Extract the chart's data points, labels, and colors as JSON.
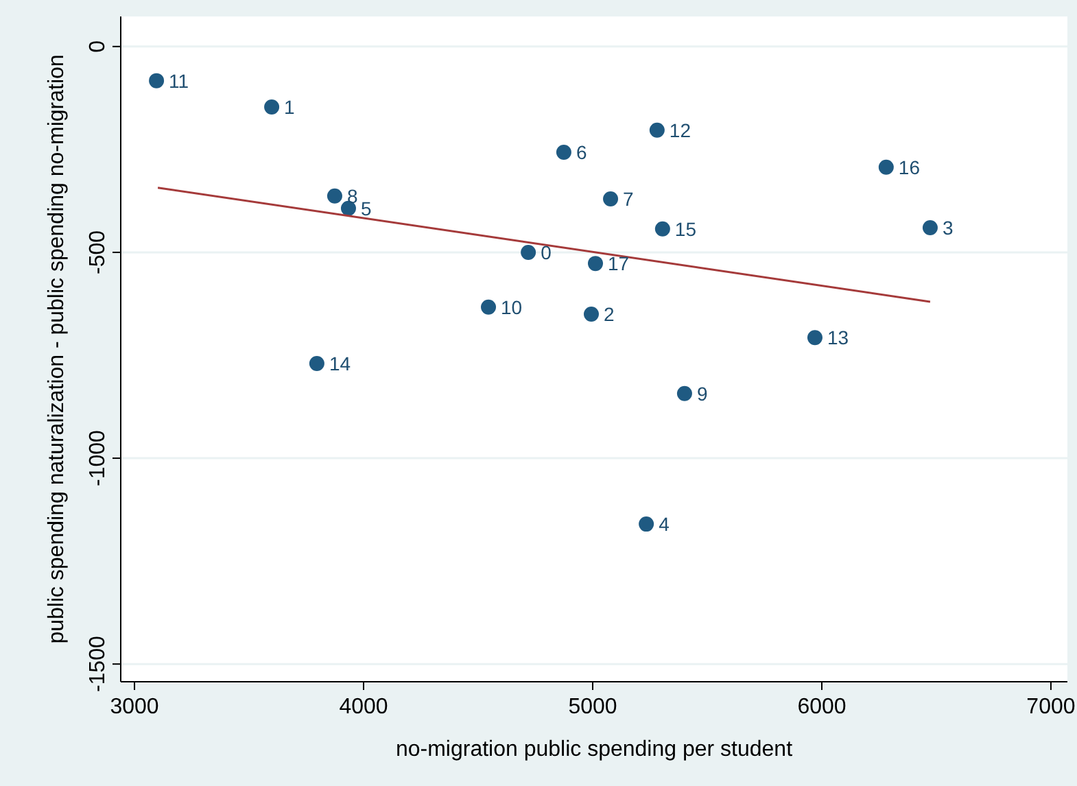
{
  "chart_data": {
    "type": "scatter",
    "xlabel": "no-migration public spending per student",
    "ylabel": "public spending naturalization - public spending no-migration",
    "xlim": [
      2940,
      7072
    ],
    "ylim": [
      -1543,
      73
    ],
    "xticks": [
      3000,
      4000,
      5000,
      6000,
      7000
    ],
    "yticks": [
      0,
      -500,
      -1000,
      -1500
    ],
    "grid": "y",
    "marker": "circle",
    "series": [
      {
        "color": "#1f5a82",
        "x": [
          4719,
          3599,
          4994,
          6473,
          5234,
          3934,
          4874,
          5078,
          3874,
          5401,
          4545,
          3096,
          5281,
          5970,
          3796,
          5305,
          6281,
          5012
        ],
        "values": [
          -500,
          -147,
          -650,
          -440,
          -1160,
          -393,
          -257,
          -370,
          -363,
          -843,
          -633,
          -83,
          -203,
          -707,
          -770,
          -443,
          -293,
          -527
        ]
      },
      {
        "type": "line",
        "marker": "none",
        "color": "#a53a3a",
        "x": [
          3102,
          6473
        ],
        "values": [
          -343,
          -620
        ]
      }
    ],
    "annotations": [
      {
        "text": "0",
        "x": 4719,
        "y": -500
      },
      {
        "text": "1",
        "x": 3599,
        "y": -147
      },
      {
        "text": "2",
        "x": 4994,
        "y": -650
      },
      {
        "text": "3",
        "x": 6473,
        "y": -440
      },
      {
        "text": "4",
        "x": 5234,
        "y": -1160
      },
      {
        "text": "5",
        "x": 3934,
        "y": -393
      },
      {
        "text": "6",
        "x": 4874,
        "y": -257
      },
      {
        "text": "7",
        "x": 5078,
        "y": -370
      },
      {
        "text": "8",
        "x": 3874,
        "y": -363
      },
      {
        "text": "9",
        "x": 5401,
        "y": -843
      },
      {
        "text": "10",
        "x": 4545,
        "y": -633
      },
      {
        "text": "11",
        "x": 3096,
        "y": -83
      },
      {
        "text": "12",
        "x": 5281,
        "y": -203
      },
      {
        "text": "13",
        "x": 5970,
        "y": -707
      },
      {
        "text": "14",
        "x": 3796,
        "y": -770
      },
      {
        "text": "15",
        "x": 5305,
        "y": -443
      },
      {
        "text": "16",
        "x": 6281,
        "y": -293
      },
      {
        "text": "17",
        "x": 5012,
        "y": -527
      }
    ]
  }
}
